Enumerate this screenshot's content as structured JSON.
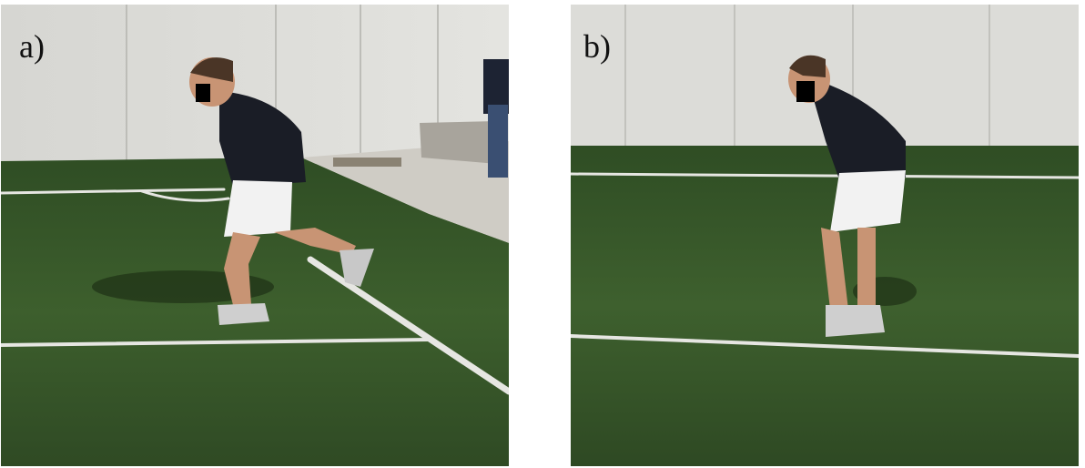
{
  "figure": {
    "panels": [
      {
        "label": "a)"
      },
      {
        "label": "b)"
      }
    ]
  },
  "colors": {
    "wall": "#d9d9d6",
    "grass": "#3b5a2c",
    "grass_dark": "#2c4722",
    "line": "#e8e8e4",
    "jacket": "#1a1d26",
    "shorts": "#f2f2f2",
    "skin": "#c89474",
    "hair": "#4a3526",
    "censor": "#000000"
  }
}
